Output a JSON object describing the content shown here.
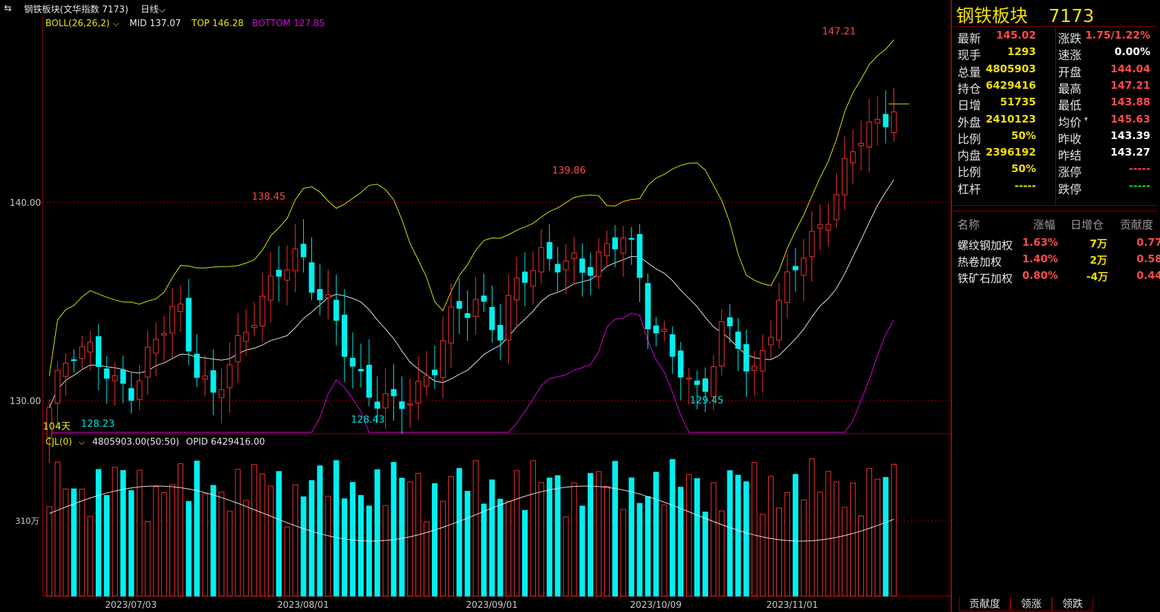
{
  "header": {
    "instrument": "钢铁板块(文华指数  7173)",
    "period": "日线"
  },
  "indicators": {
    "boll_name": "BOLL(26,26,2)",
    "mid": "MID 137.07",
    "top": "TOP 146.28",
    "bottom": "BOTTOM 127.85",
    "days": "104天",
    "vol_name": "CJL(0)",
    "vol_values": "4805903.00(50:50)",
    "opid": "OPID 6429416.00"
  },
  "price_axis": {
    "labels": [
      "140.00",
      "130.00"
    ],
    "vol_label": "310万"
  },
  "annotations": {
    "high_peak": "147.21",
    "aug_high": "138.45",
    "sep_high": "139.86",
    "jul_low": "128.23",
    "aug_low": "128.43",
    "oct_low": "129.45"
  },
  "date_axis": [
    "2023/07/03",
    "2023/08/01",
    "2023/09/01",
    "2023/10/09",
    "2023/11/01"
  ],
  "quote": {
    "name": "钢铁板块",
    "code": "7173",
    "left": [
      {
        "label": "最新",
        "value": "145.02",
        "color": "red"
      },
      {
        "label": "现手",
        "value": "1293",
        "color": "yellow"
      },
      {
        "label": "总量",
        "value": "4805903",
        "color": "yellow"
      },
      {
        "label": "持仓",
        "value": "6429416",
        "color": "yellow"
      },
      {
        "label": "日增",
        "value": "51735",
        "color": "yellow"
      },
      {
        "label": "外盘",
        "value": "2410123",
        "color": "yellow"
      },
      {
        "label": "比例",
        "value": "50%",
        "color": "yellow"
      },
      {
        "label": "内盘",
        "value": "2396192",
        "color": "yellow"
      },
      {
        "label": "比例",
        "value": "50%",
        "color": "yellow"
      },
      {
        "label": "杠杆",
        "value": "-----",
        "color": "yellow"
      }
    ],
    "right": [
      {
        "label": "涨跌",
        "value": "1.75/1.22%",
        "color": "red"
      },
      {
        "label": "速涨",
        "value": "0.00%",
        "color": "white"
      },
      {
        "label": "开盘",
        "value": "144.04",
        "color": "red"
      },
      {
        "label": "最高",
        "value": "147.21",
        "color": "red"
      },
      {
        "label": "最低",
        "value": "143.88",
        "color": "red"
      },
      {
        "label": "均价",
        "value": "145.63",
        "color": "red"
      },
      {
        "label": "昨收",
        "value": "143.39",
        "color": "white"
      },
      {
        "label": "昨结",
        "value": "143.27",
        "color": "white"
      },
      {
        "label": "涨停",
        "value": "-----",
        "color": "red"
      },
      {
        "label": "跌停",
        "value": "-----",
        "color": "green"
      }
    ]
  },
  "contribution": {
    "headers": [
      "名称",
      "涨幅",
      "日增仓",
      "贡献度"
    ],
    "rows": [
      {
        "name": "螺纹钢加权",
        "change": "1.63%",
        "oi": "7万",
        "contrib": "0.77"
      },
      {
        "name": "热卷加权",
        "change": "1.40%",
        "oi": "2万",
        "contrib": "0.58"
      },
      {
        "name": "铁矿石加权",
        "change": "0.80%",
        "oi": "-4万",
        "contrib": "0.44"
      }
    ]
  },
  "tabs": [
    "贡献度",
    "领涨",
    "领跌"
  ],
  "colors": {
    "up": "#ff3030",
    "down": "#00f0f0",
    "mid": "#e8e8e8",
    "top": "#e8e800",
    "bottom": "#e000e0",
    "grid": "#b00000"
  }
}
